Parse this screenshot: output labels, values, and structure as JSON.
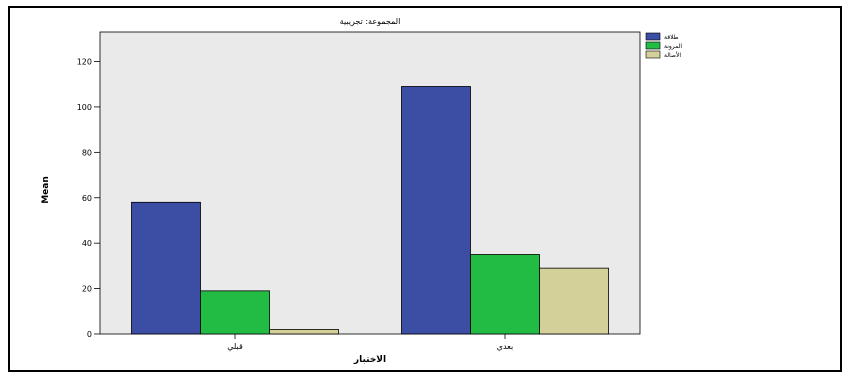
{
  "chart_data": {
    "type": "bar",
    "title": "المجموعة: تجريبية",
    "xlabel": "الاختبار",
    "ylabel": "Mean",
    "categories": [
      "قبلي",
      "بعدي"
    ],
    "series": [
      {
        "name": "طلاقة",
        "color": "#3C4EA4",
        "values": [
          58,
          109
        ]
      },
      {
        "name": "المرونة",
        "color": "#22BB44",
        "values": [
          19,
          35
        ]
      },
      {
        "name": "الأصالة",
        "color": "#D4D09A",
        "values": [
          2,
          29
        ]
      }
    ],
    "ylim": [
      0,
      133
    ],
    "yticks": [
      0,
      20,
      40,
      60,
      80,
      100,
      120
    ],
    "grid": false,
    "legend_position": "top-right"
  }
}
